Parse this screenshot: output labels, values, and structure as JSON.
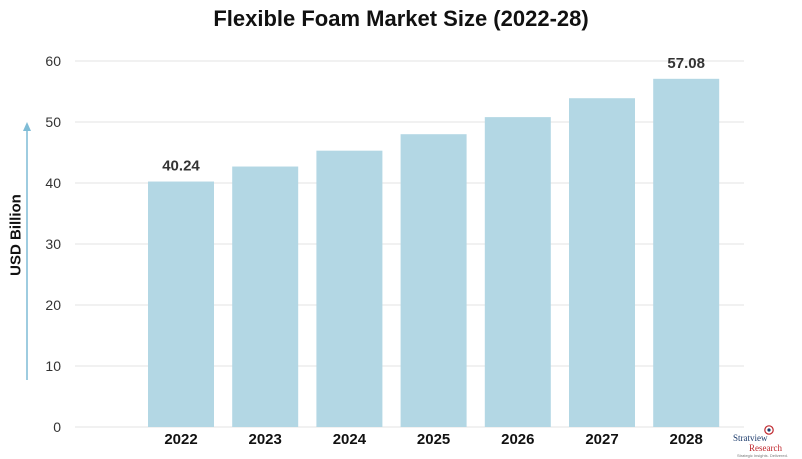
{
  "chart_data": {
    "type": "bar",
    "title": "Flexible Foam Market Size (2022-28)",
    "xlabel": "",
    "ylabel": "USD Billion",
    "categories": [
      "2022",
      "2023",
      "2024",
      "2025",
      "2026",
      "2027",
      "2028"
    ],
    "values": [
      40.24,
      42.7,
      45.3,
      48.0,
      50.8,
      53.9,
      57.08
    ],
    "data_labels": [
      {
        "category": "2022",
        "text": "40.24"
      },
      {
        "category": "2028",
        "text": "57.08"
      }
    ],
    "ylim": [
      0,
      60
    ],
    "yticks": [
      0,
      10,
      20,
      30,
      40,
      50,
      60
    ],
    "grid": "horizontal",
    "bar_color": "#b3d7e4",
    "grid_color": "#e3e3e3",
    "axis_arrow_color": "#7fbcd6"
  },
  "logo": {
    "line1": "Stratview",
    "line2": "Research",
    "line3": "Strategic Insights. Delivered."
  }
}
